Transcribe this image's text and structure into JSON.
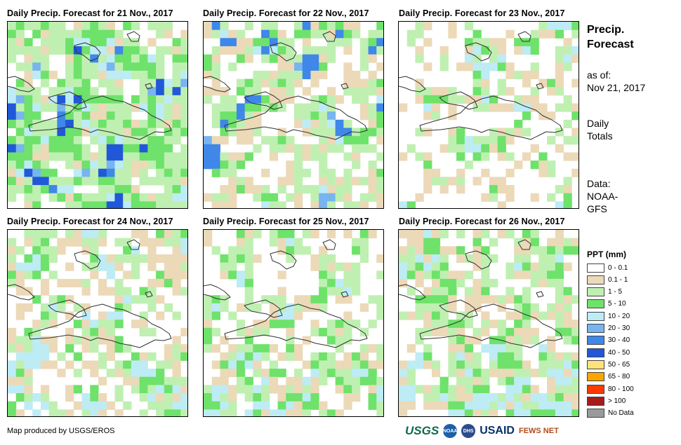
{
  "panels": [
    {
      "title": "Daily Precip. Forecast for 21 Nov., 2017"
    },
    {
      "title": "Daily Precip. Forecast for 22 Nov., 2017"
    },
    {
      "title": "Daily Precip. Forecast for 23 Nov., 2017"
    },
    {
      "title": "Daily Precip. Forecast for 24 Nov., 2017"
    },
    {
      "title": "Daily Precip. Forecast for 25 Nov., 2017"
    },
    {
      "title": "Daily Precip. Forecast for 26 Nov., 2017"
    }
  ],
  "side": {
    "heading1": "Precip.",
    "heading2": "Forecast",
    "asof1": "as of:",
    "asof2": "Nov 21, 2017",
    "daily1": "Daily",
    "daily2": "Totals",
    "data1": "Data:",
    "data2": "NOAA-",
    "data3": "GFS"
  },
  "legend": {
    "title": "PPT (mm)",
    "items": [
      {
        "label": "0 - 0.1",
        "color": "#ffffff"
      },
      {
        "label": "0.1 - 1",
        "color": "#ecd9b8"
      },
      {
        "label": "1 - 5",
        "color": "#bff0b2"
      },
      {
        "label": "5 - 10",
        "color": "#6ee26a"
      },
      {
        "label": "10 - 20",
        "color": "#bdecf5"
      },
      {
        "label": "20 - 30",
        "color": "#78b4ef"
      },
      {
        "label": "30 - 40",
        "color": "#3f87e8"
      },
      {
        "label": "40 - 50",
        "color": "#2158d9"
      },
      {
        "label": "50 - 65",
        "color": "#ffe37a"
      },
      {
        "label": "65 - 80",
        "color": "#ffa500"
      },
      {
        "label": "80 - 100",
        "color": "#ff3a00"
      },
      {
        "label": "> 100",
        "color": "#a61c1c"
      },
      {
        "label": "No Data",
        "color": "#9a9a9a"
      }
    ]
  },
  "credit": "Map produced by USGS/EROS",
  "logos": {
    "usgs": "USGS",
    "noaa": "NOAA",
    "dhs": "DHS",
    "usaid": "USAID",
    "fews": "FEWS NET"
  }
}
